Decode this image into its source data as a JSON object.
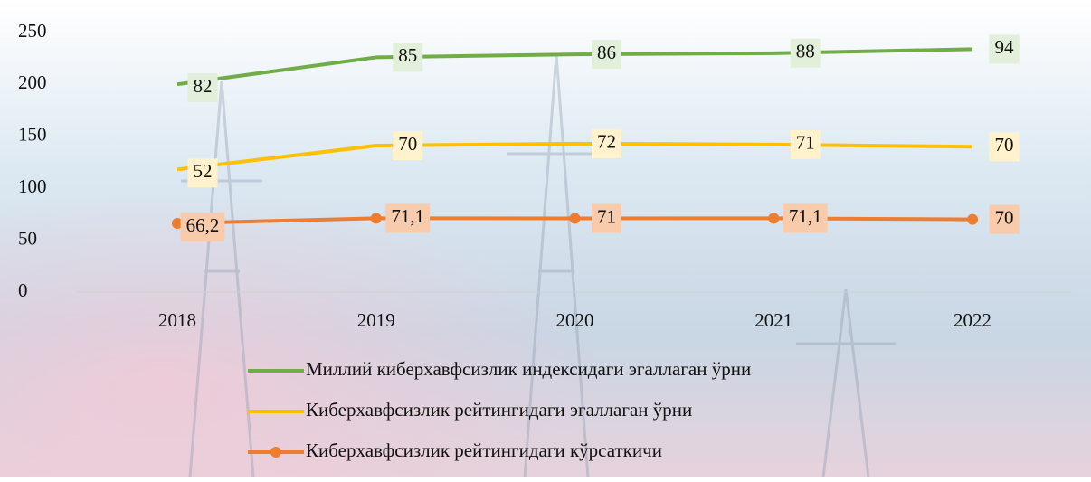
{
  "chart_data": {
    "type": "line",
    "stacked": true,
    "categories": [
      "2018",
      "2019",
      "2020",
      "2021",
      "2022"
    ],
    "series": [
      {
        "name": "Киберхавфсизлик рейтингидаги кўрсаткичи",
        "color": "#ed7d31",
        "markers": true,
        "label_bg": "#f8cbad",
        "values": [
          66.2,
          71.1,
          71,
          71.1,
          70
        ],
        "value_labels": [
          "66,2",
          "71,1",
          "71",
          "71,1",
          "70"
        ]
      },
      {
        "name": "Киберхавфсизлик рейтингидаги эгаллаган ўрни",
        "color": "#ffc000",
        "markers": false,
        "label_bg": "#fff2cc",
        "values": [
          52,
          70,
          72,
          71,
          70
        ]
      },
      {
        "name": "Миллий киберхавфсизлик индексидаги эгаллаган ўрни",
        "color": "#70ad47",
        "markers": false,
        "label_bg": "#e2efda",
        "values": [
          82,
          85,
          86,
          88,
          94
        ]
      }
    ],
    "ylim": [
      0,
      250
    ],
    "yticks": [
      0,
      50,
      100,
      150,
      200,
      250
    ],
    "grid": false
  }
}
